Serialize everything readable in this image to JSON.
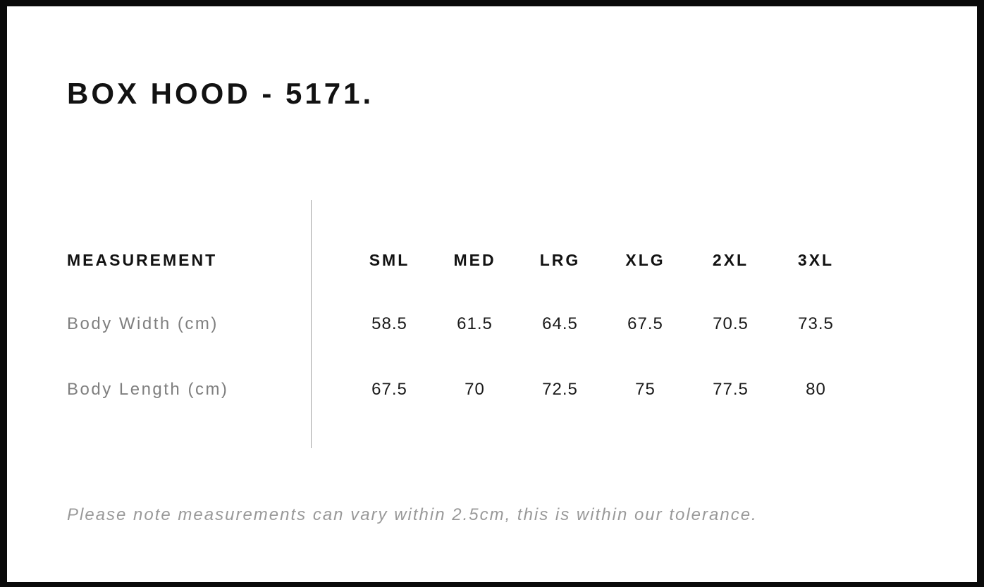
{
  "page": {
    "title": "BOX HOOD - 5171.",
    "note": "Please note measurements can vary within 2.5cm, this is within our tolerance."
  },
  "size_chart": {
    "header_label": "MEASUREMENT",
    "sizes": [
      "SML",
      "MED",
      "LRG",
      "XLG",
      "2XL",
      "3XL"
    ],
    "rows": [
      {
        "label": "Body Width (cm)",
        "values": [
          "58.5",
          "61.5",
          "64.5",
          "67.5",
          "70.5",
          "73.5"
        ]
      },
      {
        "label": "Body Length (cm)",
        "values": [
          "67.5",
          "70",
          "72.5",
          "75",
          "77.5",
          "80"
        ]
      }
    ]
  },
  "colors": {
    "frame_border": "#0a0a0a",
    "page_background": "#ffffff",
    "heading_text": "#121212",
    "value_text": "#1a1a1a",
    "label_text": "#7f7f7f",
    "note_text": "#999999",
    "divider": "#a3a3a3"
  }
}
